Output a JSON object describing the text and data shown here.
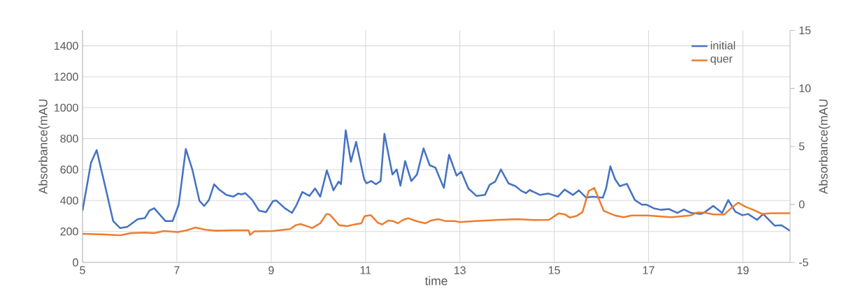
{
  "chart_data": {
    "type": "line",
    "xlabel": "time",
    "ylabel": "Absorbance(mAU",
    "y2label": "Absorbance(mAU",
    "xlim": [
      5,
      20
    ],
    "xticks": [
      5,
      7,
      9,
      11,
      13,
      15,
      17,
      19
    ],
    "ylim": [
      0,
      1500
    ],
    "yticks": [
      0,
      200,
      400,
      600,
      800,
      1000,
      1200,
      1400
    ],
    "y2lim": [
      -5,
      15
    ],
    "y2ticks": [
      -5,
      0,
      5,
      10,
      15
    ],
    "grid": true,
    "legend": "top right",
    "series": [
      {
        "name": "initial",
        "color": "#4472c4",
        "x": [
          5.0,
          5.18,
          5.3,
          5.48,
          5.65,
          5.8,
          5.95,
          6.17,
          6.32,
          6.42,
          6.52,
          6.76,
          6.91,
          7.04,
          7.19,
          7.33,
          7.48,
          7.58,
          7.68,
          7.79,
          7.9,
          8.05,
          8.2,
          8.3,
          8.37,
          8.45,
          8.6,
          8.74,
          8.89,
          9.04,
          9.11,
          9.29,
          9.44,
          9.54,
          9.66,
          9.81,
          9.93,
          10.04,
          10.18,
          10.32,
          10.43,
          10.48,
          10.58,
          10.69,
          10.8,
          10.97,
          11.02,
          11.12,
          11.22,
          11.32,
          11.4,
          11.57,
          11.66,
          11.74,
          11.84,
          11.97,
          12.09,
          12.23,
          12.36,
          12.48,
          12.66,
          12.77,
          12.93,
          13.03,
          13.18,
          13.35,
          13.53,
          13.63,
          13.75,
          13.87,
          14.03,
          14.18,
          14.3,
          14.4,
          14.48,
          14.7,
          14.88,
          15.08,
          15.22,
          15.4,
          15.52,
          15.68,
          15.8,
          16.03,
          16.1,
          16.19,
          16.29,
          16.39,
          16.54,
          16.71,
          16.86,
          16.96,
          17.11,
          17.26,
          17.43,
          17.61,
          17.75,
          17.9,
          18.1,
          18.17,
          18.37,
          18.56,
          18.69,
          18.84,
          18.99,
          19.11,
          19.3,
          19.43,
          19.67,
          19.82,
          20.0
        ],
        "values": [
          335,
          644,
          726,
          493,
          267,
          222,
          230,
          280,
          286,
          335,
          350,
          267,
          267,
          373,
          733,
          598,
          397,
          365,
          403,
          505,
          470,
          436,
          425,
          445,
          440,
          448,
          403,
          335,
          325,
          397,
          400,
          350,
          320,
          373,
          455,
          430,
          478,
          425,
          595,
          466,
          523,
          506,
          854,
          651,
          779,
          538,
          511,
          526,
          505,
          526,
          831,
          568,
          601,
          496,
          655,
          526,
          568,
          737,
          628,
          613,
          481,
          696,
          561,
          586,
          478,
          430,
          436,
          501,
          523,
          601,
          511,
          493,
          463,
          448,
          468,
          436,
          445,
          425,
          471,
          436,
          466,
          418,
          425,
          418,
          478,
          621,
          538,
          493,
          508,
          403,
          373,
          373,
          350,
          340,
          345,
          320,
          342,
          320,
          313,
          320,
          365,
          320,
          403,
          328,
          305,
          313,
          275,
          313,
          238,
          240,
          204
        ]
      },
      {
        "name": "quer",
        "color": "#ed7d31",
        "axis": "y2",
        "x": [
          5.0,
          5.48,
          5.8,
          6.02,
          6.32,
          6.52,
          6.72,
          7.02,
          7.21,
          7.39,
          7.61,
          7.81,
          8.2,
          8.52,
          8.55,
          8.64,
          9.03,
          9.4,
          9.52,
          9.62,
          9.87,
          10.04,
          10.17,
          10.24,
          10.44,
          10.61,
          10.76,
          10.91,
          10.98,
          11.11,
          11.26,
          11.35,
          11.48,
          11.58,
          11.68,
          11.8,
          11.9,
          12.1,
          12.27,
          12.39,
          12.54,
          12.69,
          12.89,
          12.99,
          13.33,
          13.83,
          14.22,
          14.57,
          14.89,
          15.09,
          15.23,
          15.33,
          15.48,
          15.6,
          15.73,
          15.85,
          16.05,
          16.29,
          16.47,
          16.64,
          16.98,
          17.48,
          17.88,
          18.03,
          18.17,
          18.37,
          18.61,
          18.76,
          18.9,
          19.06,
          19.21,
          19.41,
          19.61,
          19.85,
          20.0
        ],
        "values": [
          -2.53,
          -2.59,
          -2.67,
          -2.47,
          -2.43,
          -2.47,
          -2.29,
          -2.39,
          -2.23,
          -1.99,
          -2.19,
          -2.27,
          -2.23,
          -2.23,
          -2.63,
          -2.33,
          -2.29,
          -2.13,
          -1.79,
          -1.69,
          -2.03,
          -1.63,
          -0.83,
          -0.87,
          -1.79,
          -1.87,
          -1.73,
          -1.63,
          -1.02,
          -0.92,
          -1.58,
          -1.73,
          -1.39,
          -1.43,
          -1.63,
          -1.33,
          -1.19,
          -1.47,
          -1.63,
          -1.39,
          -1.27,
          -1.43,
          -1.43,
          -1.53,
          -1.43,
          -1.33,
          -1.27,
          -1.35,
          -1.33,
          -0.78,
          -0.87,
          -1.13,
          -0.98,
          -0.66,
          1.16,
          1.41,
          -0.56,
          -0.96,
          -1.1,
          -0.96,
          -0.96,
          -1.1,
          -0.96,
          -0.7,
          -0.7,
          -0.86,
          -0.86,
          -0.29,
          0.15,
          -0.21,
          -0.45,
          -0.82,
          -0.76,
          -0.76,
          -0.76
        ]
      }
    ]
  }
}
